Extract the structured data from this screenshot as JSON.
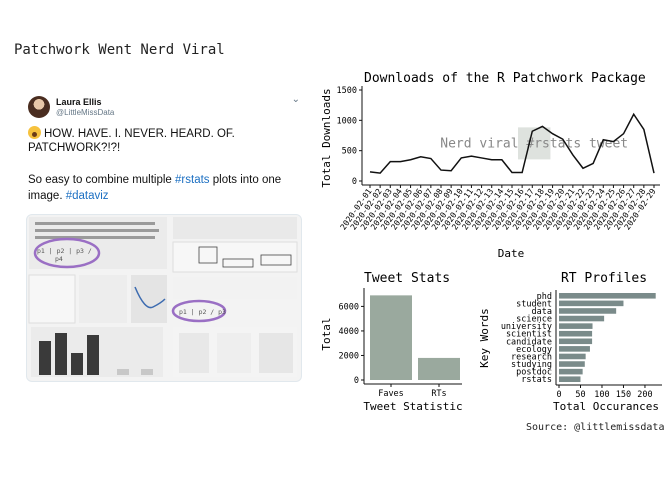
{
  "page": {
    "title": "Patchwork Went Nerd Viral",
    "source": "Source: @littlemissdata"
  },
  "tweet": {
    "author_name": "Laura Ellis",
    "author_handle": "@LittleMissData",
    "line1": "HOW. HAVE. I. NEVER. HEARD. OF.",
    "line2": "PATCHWORK?!?!",
    "line3_pre": "So easy to combine multiple ",
    "line3_tag": "#rstats",
    "line3_post": " plots into one",
    "line4_pre": "image. ",
    "line4_tag": "#dataviz",
    "code_label_1": "p1 | p2 | p3 /",
    "code_label_2": "p4",
    "code_label_3": "p1 | p2 / p3"
  },
  "chart_data": [
    {
      "type": "line",
      "title": "Downloads of the R Patchwork Package",
      "xlabel": "Date",
      "ylabel": "Total Downloads",
      "ylim": [
        0,
        1500
      ],
      "yticks": [
        0,
        500,
        1000,
        1500
      ],
      "x": [
        "2020-02-01",
        "2020-02-02",
        "2020-02-03",
        "2020-02-04",
        "2020-02-05",
        "2020-02-06",
        "2020-02-07",
        "2020-02-08",
        "2020-02-09",
        "2020-02-10",
        "2020-02-11",
        "2020-02-12",
        "2020-02-13",
        "2020-02-14",
        "2020-02-15",
        "2020-02-16",
        "2020-02-17",
        "2020-02-18",
        "2020-02-19",
        "2020-02-20",
        "2020-02-21",
        "2020-02-22",
        "2020-02-23",
        "2020-02-24",
        "2020-02-25",
        "2020-02-26",
        "2020-02-27",
        "2020-02-28",
        "2020-02-29"
      ],
      "values": [
        150,
        130,
        320,
        320,
        350,
        400,
        370,
        180,
        170,
        380,
        410,
        380,
        350,
        350,
        140,
        140,
        820,
        900,
        780,
        690,
        430,
        210,
        290,
        680,
        650,
        780,
        1100,
        850,
        130
      ],
      "annotation": {
        "text": "Nerd viral #rstats tweet",
        "x_start": "2020-02-15",
        "x_end": "2020-02-18",
        "y_center": 620
      },
      "grid": false
    },
    {
      "type": "bar",
      "title": "Tweet Stats",
      "xlabel": "Tweet Statistic",
      "ylabel": "Total",
      "categories": [
        "Faves",
        "RTs"
      ],
      "values": [
        6900,
        1800
      ],
      "ylim": [
        0,
        7500
      ],
      "yticks": [
        0,
        2000,
        4000,
        6000
      ],
      "color": "#9aa99e",
      "grid": false
    },
    {
      "type": "bar",
      "orientation": "horizontal",
      "title": "RT Profiles",
      "xlabel": "Total Occurances",
      "ylabel": "Key Words",
      "categories": [
        "phd",
        "student",
        "data",
        "science",
        "university",
        "scientist",
        "candidate",
        "ecology",
        "research",
        "studying",
        "postdoc",
        "rstats"
      ],
      "values": [
        225,
        150,
        133,
        105,
        78,
        77,
        77,
        72,
        62,
        60,
        55,
        50
      ],
      "xlim": [
        0,
        235
      ],
      "xticks": [
        0,
        50,
        100,
        150,
        200
      ],
      "color": "#7a8b8a",
      "grid": false
    }
  ]
}
